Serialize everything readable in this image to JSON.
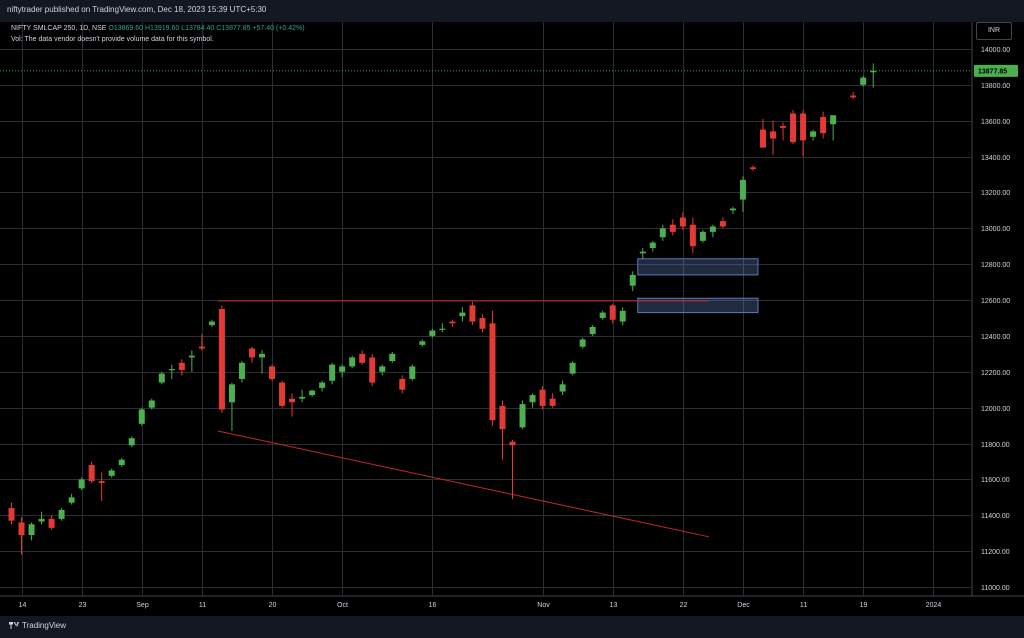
{
  "header": {
    "publish_line": "niftytrader published on TradingView.com, Dec 18, 2023 15:39 UTC+5:30",
    "symbol": "NIFTY SMLCAP 250, 1D, NSE",
    "ohlc": "O13869.60 H13919.60 L13784.40 C13877.85 +57.40 (+0.42%)",
    "vol_note": "Vol: The data vendor doesn't provide volume data for this symbol."
  },
  "currency": "INR",
  "footer": {
    "brand": "TradingView"
  },
  "colors": {
    "up": "#4caf50",
    "down": "#e53935",
    "grid": "#2a2e39",
    "line": "#c62828",
    "box": "#5b7ab8"
  },
  "chart_data": {
    "type": "candlestick",
    "ylim": [
      10950,
      14150
    ],
    "yticks": [
      11000,
      11200,
      11400,
      11600,
      11800,
      12000,
      12200,
      12400,
      12600,
      12800,
      13000,
      13200,
      13400,
      13600,
      13800,
      14000
    ],
    "ytick_labels": [
      "11000.00",
      "11200.00",
      "11400.00",
      "11600.00",
      "11800.00",
      "12000.00",
      "12200.00",
      "12400.00",
      "12600.00",
      "12800.00",
      "13000.00",
      "13200.00",
      "13400.00",
      "13600.00",
      "13800.00",
      "14000.00"
    ],
    "xticks": [
      {
        "label": "14",
        "bar": 1
      },
      {
        "label": "23",
        "bar": 7
      },
      {
        "label": "Sep",
        "bar": 13
      },
      {
        "label": "11",
        "bar": 19
      },
      {
        "label": "20",
        "bar": 26
      },
      {
        "label": "Oct",
        "bar": 33
      },
      {
        "label": "16",
        "bar": 42
      },
      {
        "label": "Nov",
        "bar": 53
      },
      {
        "label": "13",
        "bar": 60
      },
      {
        "label": "22",
        "bar": 67
      },
      {
        "label": "Dec",
        "bar": 73
      },
      {
        "label": "11",
        "bar": 79
      },
      {
        "label": "19",
        "bar": 85
      },
      {
        "label": "2024",
        "bar": 92
      }
    ],
    "last_price": "13877.85",
    "last_value": 13877.85,
    "candles": [
      {
        "o": 11440,
        "h": 11470,
        "l": 11350,
        "c": 11370
      },
      {
        "o": 11360,
        "h": 11390,
        "l": 11180,
        "c": 11290
      },
      {
        "o": 11290,
        "h": 11360,
        "l": 11260,
        "c": 11350
      },
      {
        "o": 11365,
        "h": 11420,
        "l": 11350,
        "c": 11380
      },
      {
        "o": 11380,
        "h": 11400,
        "l": 11320,
        "c": 11330
      },
      {
        "o": 11380,
        "h": 11440,
        "l": 11370,
        "c": 11430
      },
      {
        "o": 11470,
        "h": 11520,
        "l": 11460,
        "c": 11500
      },
      {
        "o": 11550,
        "h": 11610,
        "l": 11540,
        "c": 11600
      },
      {
        "o": 11680,
        "h": 11700,
        "l": 11580,
        "c": 11590
      },
      {
        "o": 11590,
        "h": 11640,
        "l": 11480,
        "c": 11580
      },
      {
        "o": 11620,
        "h": 11660,
        "l": 11610,
        "c": 11650
      },
      {
        "o": 11680,
        "h": 11720,
        "l": 11670,
        "c": 11710
      },
      {
        "o": 11790,
        "h": 11840,
        "l": 11780,
        "c": 11830
      },
      {
        "o": 11910,
        "h": 12000,
        "l": 11900,
        "c": 11990
      },
      {
        "o": 12000,
        "h": 12050,
        "l": 11990,
        "c": 12040
      },
      {
        "o": 12140,
        "h": 12200,
        "l": 12130,
        "c": 12190
      },
      {
        "o": 12210,
        "h": 12240,
        "l": 12160,
        "c": 12215
      },
      {
        "o": 12250,
        "h": 12270,
        "l": 12180,
        "c": 12210
      },
      {
        "o": 12280,
        "h": 12320,
        "l": 12200,
        "c": 12290
      },
      {
        "o": 12340,
        "h": 12410,
        "l": 12320,
        "c": 12330
      },
      {
        "o": 12460,
        "h": 12490,
        "l": 12450,
        "c": 12480
      },
      {
        "o": 12550,
        "h": 12570,
        "l": 11970,
        "c": 11990
      },
      {
        "o": 12030,
        "h": 12140,
        "l": 11870,
        "c": 12130
      },
      {
        "o": 12160,
        "h": 12260,
        "l": 12140,
        "c": 12250
      },
      {
        "o": 12330,
        "h": 12340,
        "l": 12250,
        "c": 12280
      },
      {
        "o": 12280,
        "h": 12320,
        "l": 12190,
        "c": 12300
      },
      {
        "o": 12230,
        "h": 12240,
        "l": 12150,
        "c": 12160
      },
      {
        "o": 12140,
        "h": 12150,
        "l": 12000,
        "c": 12010
      },
      {
        "o": 12050,
        "h": 12080,
        "l": 11950,
        "c": 12030
      },
      {
        "o": 12050,
        "h": 12100,
        "l": 12030,
        "c": 12060
      },
      {
        "o": 12070,
        "h": 12100,
        "l": 12060,
        "c": 12095
      },
      {
        "o": 12110,
        "h": 12150,
        "l": 12090,
        "c": 12140
      },
      {
        "o": 12150,
        "h": 12250,
        "l": 12130,
        "c": 12240
      },
      {
        "o": 12200,
        "h": 12240,
        "l": 12170,
        "c": 12230
      },
      {
        "o": 12230,
        "h": 12290,
        "l": 12220,
        "c": 12280
      },
      {
        "o": 12300,
        "h": 12320,
        "l": 12240,
        "c": 12250
      },
      {
        "o": 12280,
        "h": 12300,
        "l": 12120,
        "c": 12140
      },
      {
        "o": 12200,
        "h": 12240,
        "l": 12180,
        "c": 12230
      },
      {
        "o": 12260,
        "h": 12310,
        "l": 12250,
        "c": 12300
      },
      {
        "o": 12160,
        "h": 12180,
        "l": 12080,
        "c": 12100
      },
      {
        "o": 12160,
        "h": 12240,
        "l": 12150,
        "c": 12230
      },
      {
        "o": 12350,
        "h": 12380,
        "l": 12340,
        "c": 12370
      },
      {
        "o": 12400,
        "h": 12440,
        "l": 12390,
        "c": 12430
      },
      {
        "o": 12440,
        "h": 12470,
        "l": 12420,
        "c": 12440
      },
      {
        "o": 12480,
        "h": 12490,
        "l": 12450,
        "c": 12470
      },
      {
        "o": 12510,
        "h": 12560,
        "l": 12480,
        "c": 12530
      },
      {
        "o": 12570,
        "h": 12590,
        "l": 12460,
        "c": 12480
      },
      {
        "o": 12500,
        "h": 12520,
        "l": 12420,
        "c": 12440
      },
      {
        "o": 12470,
        "h": 12540,
        "l": 11900,
        "c": 11930
      },
      {
        "o": 12010,
        "h": 12040,
        "l": 11710,
        "c": 11880
      },
      {
        "o": 11810,
        "h": 11820,
        "l": 11490,
        "c": 11790
      },
      {
        "o": 11890,
        "h": 12040,
        "l": 11880,
        "c": 12020
      },
      {
        "o": 12030,
        "h": 12080,
        "l": 12000,
        "c": 12070
      },
      {
        "o": 12100,
        "h": 12120,
        "l": 11990,
        "c": 12010
      },
      {
        "o": 12050,
        "h": 12080,
        "l": 12000,
        "c": 12010
      },
      {
        "o": 12090,
        "h": 12150,
        "l": 12070,
        "c": 12130
      },
      {
        "o": 12190,
        "h": 12260,
        "l": 12180,
        "c": 12250
      },
      {
        "o": 12340,
        "h": 12390,
        "l": 12330,
        "c": 12380
      },
      {
        "o": 12410,
        "h": 12460,
        "l": 12400,
        "c": 12450
      },
      {
        "o": 12500,
        "h": 12540,
        "l": 12490,
        "c": 12530
      },
      {
        "o": 12570,
        "h": 12580,
        "l": 12470,
        "c": 12490
      },
      {
        "o": 12480,
        "h": 12560,
        "l": 12460,
        "c": 12540
      },
      {
        "o": 12680,
        "h": 12760,
        "l": 12650,
        "c": 12740
      },
      {
        "o": 12860,
        "h": 12890,
        "l": 12830,
        "c": 12870
      },
      {
        "o": 12890,
        "h": 12930,
        "l": 12870,
        "c": 12920
      },
      {
        "o": 12950,
        "h": 13020,
        "l": 12930,
        "c": 13000
      },
      {
        "o": 13020,
        "h": 13050,
        "l": 12960,
        "c": 12980
      },
      {
        "o": 13060,
        "h": 13090,
        "l": 12990,
        "c": 13010
      },
      {
        "o": 13020,
        "h": 13060,
        "l": 12860,
        "c": 12900
      },
      {
        "o": 12930,
        "h": 12990,
        "l": 12920,
        "c": 12980
      },
      {
        "o": 12980,
        "h": 13020,
        "l": 12950,
        "c": 13010
      },
      {
        "o": 13040,
        "h": 13060,
        "l": 13000,
        "c": 13010
      },
      {
        "o": 13100,
        "h": 13120,
        "l": 13080,
        "c": 13110
      },
      {
        "o": 13160,
        "h": 13290,
        "l": 13090,
        "c": 13270
      },
      {
        "o": 13340,
        "h": 13350,
        "l": 13320,
        "c": 13330
      },
      {
        "o": 13550,
        "h": 13610,
        "l": 13450,
        "c": 13450
      },
      {
        "o": 13540,
        "h": 13600,
        "l": 13410,
        "c": 13500
      },
      {
        "o": 13570,
        "h": 13590,
        "l": 13490,
        "c": 13560
      },
      {
        "o": 13640,
        "h": 13660,
        "l": 13470,
        "c": 13480
      },
      {
        "o": 13640,
        "h": 13660,
        "l": 13400,
        "c": 13490
      },
      {
        "o": 13510,
        "h": 13550,
        "l": 13490,
        "c": 13540
      },
      {
        "o": 13620,
        "h": 13650,
        "l": 13500,
        "c": 13530
      },
      {
        "o": 13580,
        "h": 13630,
        "l": 13490,
        "c": 13630
      },
      null,
      {
        "o": 13740,
        "h": 13760,
        "l": 13720,
        "c": 13730
      },
      {
        "o": 13800,
        "h": 13850,
        "l": 13790,
        "c": 13840
      },
      {
        "o": 13869.6,
        "h": 13919.6,
        "l": 13784.4,
        "c": 13877.85
      }
    ],
    "trendlines": [
      {
        "name": "resistance-line",
        "from": {
          "bar": 21,
          "value": 12595
        },
        "to": {
          "bar": 70,
          "value": 12595
        }
      },
      {
        "name": "support-line",
        "from": {
          "bar": 21,
          "value": 11870
        },
        "to": {
          "bar": 70,
          "value": 11280
        }
      }
    ],
    "zones": [
      {
        "name": "zone-upper",
        "bar_from": 63,
        "bar_to": 74,
        "low": 12740,
        "high": 12830
      },
      {
        "name": "zone-lower",
        "bar_from": 63,
        "bar_to": 74,
        "low": 12530,
        "high": 12610
      }
    ]
  }
}
